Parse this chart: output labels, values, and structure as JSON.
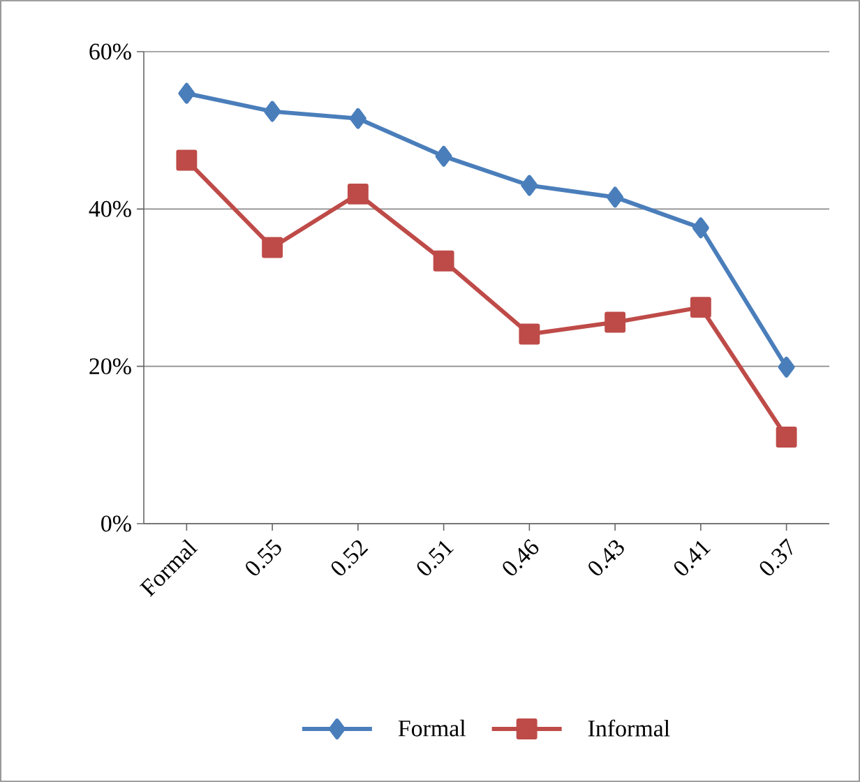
{
  "chart_data": {
    "type": "line",
    "categories": [
      "Formal",
      "0.55",
      "0.52",
      "0.51",
      "0.46",
      "0.43",
      "0.41",
      "0.37"
    ],
    "series": [
      {
        "name": "Formal",
        "color": "#4a7ebb",
        "marker": "diamond",
        "values": [
          54.7,
          52.4,
          51.5,
          46.7,
          43.0,
          41.5,
          37.6,
          19.9
        ]
      },
      {
        "name": "Informal",
        "color": "#be4b48",
        "marker": "square",
        "values": [
          46.2,
          35.1,
          41.9,
          33.4,
          24.1,
          25.6,
          27.5,
          11.0
        ]
      }
    ],
    "ylim": [
      0,
      60
    ],
    "yticks": [
      {
        "value": 0,
        "label": "0%"
      },
      {
        "value": 20,
        "label": "20%"
      },
      {
        "value": 40,
        "label": "40%"
      },
      {
        "value": 60,
        "label": "60%"
      }
    ],
    "grid": "y",
    "legend": "bottom",
    "line_style": "solid"
  }
}
